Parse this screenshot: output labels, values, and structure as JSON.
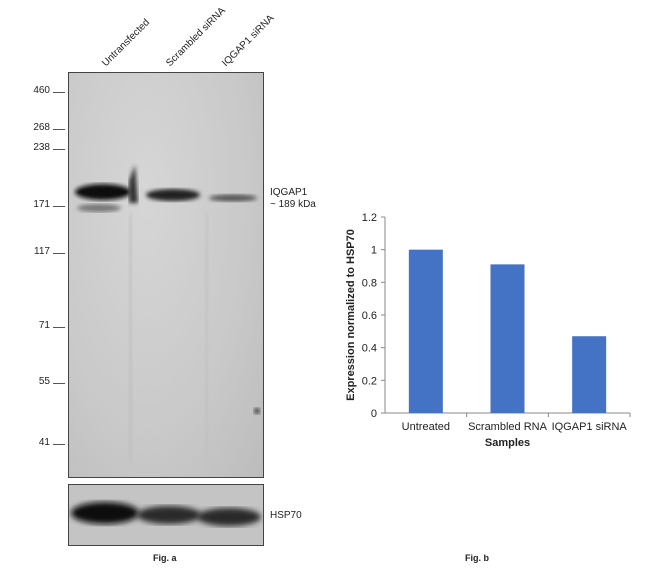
{
  "western_blot": {
    "lane_labels": [
      "Untransfected",
      "Scrambled siRNA",
      "IQGAP1 siRNA"
    ],
    "mw_markers": [
      "460",
      "268",
      "238",
      "171",
      "117",
      "71",
      "55",
      "41"
    ],
    "band_label_line1": "IQGAP1",
    "band_label_line2": "~ 189 kDa",
    "loading_control_label": "HSP70",
    "caption": "Fig. a"
  },
  "chart_caption": "Fig. b",
  "chart_data": {
    "type": "bar",
    "categories": [
      "Untreated",
      "Scrambled RNA",
      "IQGAP1 siRNA"
    ],
    "values": [
      1.0,
      0.91,
      0.47
    ],
    "xlabel": "Samples",
    "ylabel": "Expression normalized to HSP70",
    "ylim": [
      0,
      1.2
    ],
    "yticks": [
      "0",
      "0.2",
      "0.4",
      "0.6",
      "0.8",
      "1",
      "1.2"
    ],
    "bar_color": "#4472c4",
    "grid": false
  }
}
